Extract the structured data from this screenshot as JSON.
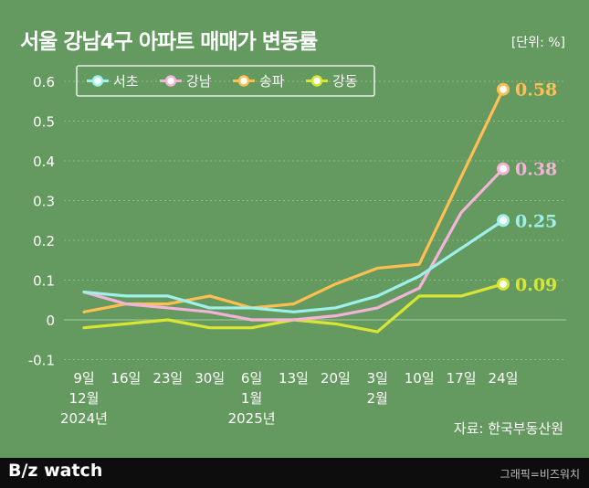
{
  "title": "서울 강남4구 아파트 매매가 변동률",
  "unit": "[단위: %]",
  "source": "자료: 한국부동산원",
  "brand": "B/z watch",
  "credit": "그래픽=비즈워치",
  "colors": {
    "background": "#649a5f",
    "grid": "#8fbb8a",
    "axis_text": "#ffffff",
    "footer": "#0d0d0d"
  },
  "chart_data": {
    "type": "line",
    "title": "서울 강남4구 아파트 매매가 변동률",
    "ylabel": "[단위: %]",
    "ylim": [
      -0.1,
      0.6
    ],
    "y_ticks": [
      "0.6",
      "0.5",
      "0.4",
      "0.3",
      "0.2",
      "0.1",
      "0",
      "-0.1"
    ],
    "y_tick_values": [
      0.6,
      0.5,
      0.4,
      0.3,
      0.2,
      0.1,
      0,
      -0.1
    ],
    "grid": true,
    "legend_position": "top-left",
    "categories": [
      "9일",
      "16일",
      "23일",
      "30일",
      "6일",
      "13일",
      "20일",
      "3일",
      "10일",
      "17일",
      "24일"
    ],
    "category_sub": [
      [
        "12월",
        "2024년"
      ],
      [],
      [],
      [],
      [
        "1월",
        "2025년"
      ],
      [],
      [],
      [
        "2월"
      ],
      [],
      [],
      []
    ],
    "series": [
      {
        "name": "서초",
        "color": "#9ff0ea",
        "values": [
          0.07,
          0.06,
          0.06,
          0.03,
          0.03,
          0.02,
          0.03,
          0.06,
          0.11,
          0.18,
          0.25
        ],
        "end_label": "0.25"
      },
      {
        "name": "강남",
        "color": "#f5b3d9",
        "values": [
          0.07,
          0.04,
          0.03,
          0.02,
          0.0,
          0.0,
          0.01,
          0.03,
          0.08,
          0.27,
          0.38
        ],
        "end_label": "0.38"
      },
      {
        "name": "송파",
        "color": "#ffbf52",
        "values": [
          0.02,
          0.04,
          0.04,
          0.06,
          0.03,
          0.04,
          0.09,
          0.13,
          0.14,
          0.36,
          0.58
        ],
        "end_label": "0.58"
      },
      {
        "name": "강동",
        "color": "#d8e534",
        "values": [
          -0.02,
          -0.01,
          0.0,
          -0.02,
          -0.02,
          0.0,
          -0.01,
          -0.03,
          0.06,
          0.06,
          0.09
        ],
        "end_label": "0.09"
      }
    ]
  }
}
